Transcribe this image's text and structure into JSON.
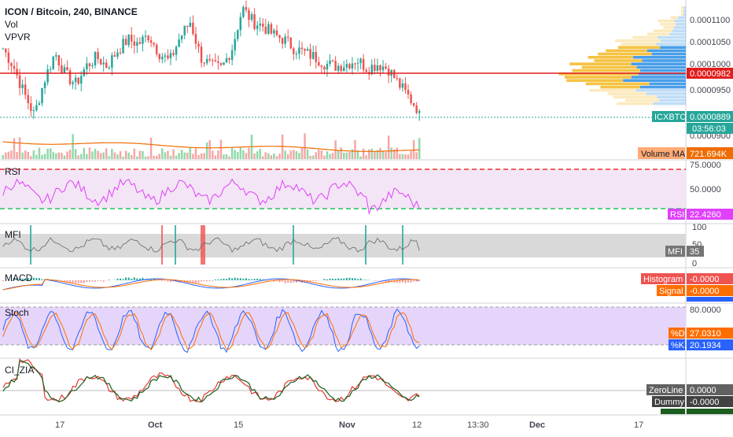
{
  "header": {
    "title": "ICON / Bitcoin, 240, BINANCE",
    "overlays": [
      "Vol",
      "VPVR"
    ]
  },
  "colors": {
    "up": "#26a69a",
    "down": "#ef5350",
    "price_line": "#e11d1d",
    "current_price_line": "#26a69a",
    "rsi": "#e040fb",
    "rsi_band": "#f3e5f5",
    "mfi_band": "#d9d9d9",
    "stoch_band": "#e6d5fa",
    "volume_ma": "#ef6c00",
    "vp_up": "#f5c242",
    "vp_down": "#4a9ee8"
  },
  "price_axis": {
    "ticks": [
      "0.0001100",
      "0.0001050",
      "0.0001000",
      "0.0000950",
      "0.0000900"
    ],
    "tags": {
      "red_line": "0.0000982",
      "symbol": "ICXBTC",
      "last": "0.0000889",
      "countdown": "03:56:03",
      "volume_ma_label": "Volume MA",
      "volume_ma_value": "721.694K"
    }
  },
  "rsi": {
    "label": "RSI",
    "ticks": [
      "75.0000",
      "50.0000"
    ],
    "tag_label": "RSI",
    "tag_value": "22.4260"
  },
  "mfi": {
    "label": "MFI",
    "ticks": [
      "100",
      "50",
      "0"
    ],
    "tag_label": "MFI",
    "tag_value": "35"
  },
  "macd": {
    "label": "MACD",
    "tags": [
      {
        "label": "Histogram",
        "value": "-0.0000"
      },
      {
        "label": "Signal",
        "value": "-0.0000"
      }
    ]
  },
  "stoch": {
    "label": "Stoch",
    "ticks": [
      "80.0000"
    ],
    "tags": [
      {
        "label": "%D",
        "value": "27.0310"
      },
      {
        "label": "%K",
        "value": "20.1934"
      }
    ]
  },
  "cizia": {
    "label": "CI_ZIA",
    "tags": [
      {
        "label": "ZeroLine",
        "value": "0.0000"
      },
      {
        "label": "Dummy",
        "value": "-0.0000"
      }
    ]
  },
  "time_axis": {
    "ticks": [
      "17",
      "Oct",
      "15",
      "Nov",
      "12",
      "13:30",
      "Dec",
      "17"
    ]
  },
  "chart_data": {
    "type": "line",
    "x_range": [
      "Sep 10",
      "Dec 20"
    ],
    "ylim": [
      8.2e-05,
      0.000113
    ],
    "ohlc_close_path": [
      0.000103,
      9.9e-05,
      9.3e-05,
      8.8e-05,
      9.6e-05,
      0.000102,
      9.7e-05,
      9.5e-05,
      9.9e-05,
      0.000101,
      9.9e-05,
      0.0001025,
      0.000105,
      0.000104,
      0.000106,
      0.000102,
      0.0001,
      0.0001055,
      0.000109,
      0.000101,
      9.9e-05,
      9.85e-05,
      0.000103,
      0.000112,
      0.000109,
      0.000108,
      0.000106,
      0.000105,
      0.000103,
      0.000102,
      0.000101,
      9.95e-05,
      9.9e-05,
      9.95e-05,
      0.0001005,
      9.85e-05,
      9.95e-05,
      9.85e-05,
      9.5e-05,
      9.2e-05,
      8.89e-05
    ],
    "horizontal_level": 9.82e-05,
    "last_price": 8.89e-05,
    "volume_ma": "721.694K",
    "rsi_levels": [
      70,
      30
    ],
    "rsi_last": 22.426,
    "mfi_last": 35,
    "stoch_k_last": 20.1934,
    "stoch_d_last": 27.031,
    "stoch_levels": [
      80,
      20
    ]
  }
}
